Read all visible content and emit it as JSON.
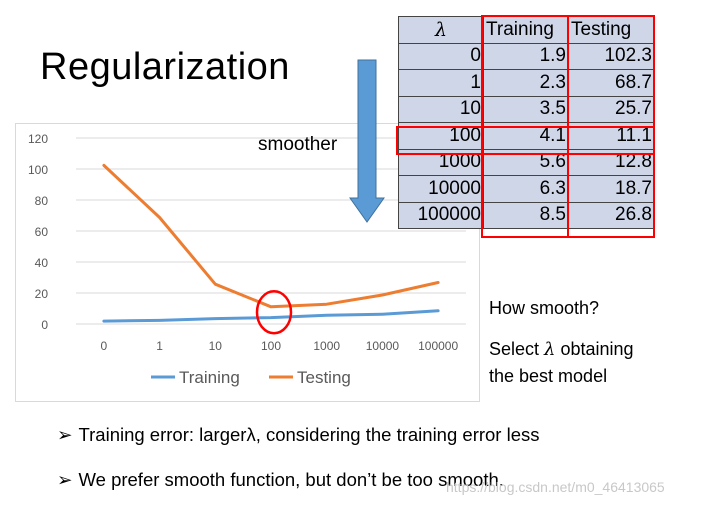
{
  "slide": {
    "title": "Regularization",
    "smoother_label": "smoother",
    "side_question": "How smooth?",
    "side_select_before": "Select ",
    "side_lambda_symbol": "λ",
    "side_select_after": " obtaining",
    "side_best_model": "the best model",
    "bullet_marker": "➢",
    "bullet1": "Training error: largerλ, considering the training error less",
    "bullet2": "We prefer smooth function, but don’t be too smooth.",
    "watermark": "https://blog.csdn.net/m0_46413065",
    "highlight_color": "#ff0000",
    "table_bg_color": "#cfd6e8"
  },
  "table": {
    "headers": [
      "λ",
      "Training",
      "Testing"
    ],
    "rows": [
      [
        "0",
        "1.9",
        "102.3"
      ],
      [
        "1",
        "2.3",
        "68.7"
      ],
      [
        "10",
        "3.5",
        "25.7"
      ],
      [
        "100",
        "4.1",
        "11.1"
      ],
      [
        "1000",
        "5.6",
        "12.8"
      ],
      [
        "10000",
        "6.3",
        "18.7"
      ],
      [
        "100000",
        "8.5",
        "26.8"
      ]
    ]
  },
  "chart_data": {
    "type": "line",
    "categories": [
      "0",
      "1",
      "10",
      "100",
      "1000",
      "10000",
      "100000"
    ],
    "series": [
      {
        "name": "Training",
        "color": "#5b9bd5",
        "values": [
          1.9,
          2.3,
          3.5,
          4.1,
          5.6,
          6.3,
          8.5
        ]
      },
      {
        "name": "Testing",
        "color": "#ed7d31",
        "values": [
          102.3,
          68.7,
          25.7,
          11.1,
          12.8,
          18.7,
          26.8
        ]
      }
    ],
    "ylim": [
      0,
      120
    ],
    "yticks": [
      0,
      20,
      40,
      60,
      80,
      100,
      120
    ],
    "grid": true,
    "legend": "bottom",
    "highlight_category": "100"
  }
}
